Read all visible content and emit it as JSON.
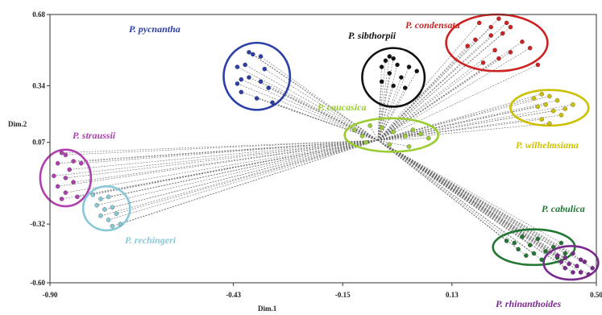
{
  "chart_data": {
    "type": "scatter",
    "title": "",
    "xlabel": "Dim.1",
    "ylabel": "Dim.2",
    "xlim": [
      -0.9,
      0.5
    ],
    "ylim": [
      -0.6,
      0.68
    ],
    "xticks": [
      -0.9,
      -0.43,
      -0.15,
      0.13,
      0.5
    ],
    "xtick_labels": [
      "-0.90",
      "-0.43",
      "-0.15",
      "0.13",
      "0.50"
    ],
    "yticks": [
      -0.6,
      -0.32,
      0.07,
      0.34,
      0.68
    ],
    "ytick_labels": [
      "-0.60",
      "-0.32",
      "0.07",
      "0.34",
      "0.68"
    ],
    "grid": false,
    "legend": "none",
    "hub": [
      -0.06,
      0.08
    ],
    "groups": [
      {
        "name": "P. pycnantha",
        "color": "#2b3fa7",
        "ellipse": {
          "cx": -0.37,
          "cy": 0.385,
          "rx": 0.085,
          "ry": 0.16
        },
        "points": [
          [
            -0.39,
            0.5
          ],
          [
            -0.38,
            0.49
          ],
          [
            -0.36,
            0.48
          ],
          [
            -0.4,
            0.44
          ],
          [
            -0.42,
            0.43
          ],
          [
            -0.35,
            0.42
          ],
          [
            -0.39,
            0.38
          ],
          [
            -0.41,
            0.37
          ],
          [
            -0.42,
            0.35
          ],
          [
            -0.36,
            0.36
          ],
          [
            -0.34,
            0.33
          ],
          [
            -0.41,
            0.31
          ],
          [
            -0.37,
            0.28
          ],
          [
            -0.33,
            0.26
          ]
        ]
      },
      {
        "name": "P. sibthorpii",
        "color": "#111111",
        "ellipse": {
          "cx": -0.02,
          "cy": 0.38,
          "rx": 0.08,
          "ry": 0.14
        },
        "points": [
          [
            -0.03,
            0.48
          ],
          [
            -0.02,
            0.47
          ],
          [
            -0.04,
            0.46
          ],
          [
            -0.01,
            0.44
          ],
          [
            -0.05,
            0.43
          ],
          [
            -0.03,
            0.4
          ],
          [
            0.0,
            0.38
          ],
          [
            -0.05,
            0.36
          ],
          [
            -0.02,
            0.34
          ],
          [
            0.02,
            0.43
          ],
          [
            0.04,
            0.41
          ],
          [
            0.01,
            0.33
          ]
        ]
      },
      {
        "name": "P. condensata",
        "color": "#cc2222",
        "ellipse": {
          "cx": 0.245,
          "cy": 0.545,
          "rx": 0.13,
          "ry": 0.135
        },
        "points": [
          [
            0.2,
            0.64
          ],
          [
            0.23,
            0.62
          ],
          [
            0.25,
            0.66
          ],
          [
            0.27,
            0.64
          ],
          [
            0.28,
            0.62
          ],
          [
            0.26,
            0.59
          ],
          [
            0.23,
            0.58
          ],
          [
            0.19,
            0.56
          ],
          [
            0.17,
            0.53
          ],
          [
            0.24,
            0.51
          ],
          [
            0.28,
            0.5
          ],
          [
            0.31,
            0.55
          ],
          [
            0.33,
            0.52
          ],
          [
            0.35,
            0.44
          ],
          [
            0.21,
            0.45
          ],
          [
            0.25,
            0.47
          ]
        ]
      },
      {
        "name": "P. caucasica",
        "color": "#9acd32",
        "ellipse": {
          "cx": -0.025,
          "cy": 0.105,
          "rx": 0.12,
          "ry": 0.08
        },
        "points": [
          [
            -0.12,
            0.13
          ],
          [
            -0.1,
            0.1
          ],
          [
            -0.08,
            0.15
          ],
          [
            -0.05,
            0.14
          ],
          [
            -0.02,
            0.12
          ],
          [
            0.01,
            0.1
          ],
          [
            0.03,
            0.13
          ],
          [
            0.05,
            0.11
          ],
          [
            0.07,
            0.09
          ],
          [
            -0.09,
            0.07
          ],
          [
            -0.03,
            0.06
          ],
          [
            0.02,
            0.05
          ]
        ]
      },
      {
        "name": "P. wilhelmsiana",
        "color": "#ccc000",
        "ellipse": {
          "cx": 0.38,
          "cy": 0.235,
          "rx": 0.1,
          "ry": 0.085
        },
        "points": [
          [
            0.34,
            0.28
          ],
          [
            0.36,
            0.3
          ],
          [
            0.38,
            0.29
          ],
          [
            0.4,
            0.27
          ],
          [
            0.37,
            0.25
          ],
          [
            0.35,
            0.24
          ],
          [
            0.39,
            0.22
          ],
          [
            0.42,
            0.23
          ],
          [
            0.44,
            0.25
          ],
          [
            0.41,
            0.2
          ],
          [
            0.36,
            0.18
          ],
          [
            0.38,
            0.16
          ]
        ]
      },
      {
        "name": "P. straussii",
        "color": "#b03fb0",
        "ellipse": {
          "cx": -0.86,
          "cy": -0.1,
          "rx": 0.065,
          "ry": 0.135
        },
        "points": [
          [
            -0.87,
            0.02
          ],
          [
            -0.86,
            0.01
          ],
          [
            -0.84,
            -0.02
          ],
          [
            -0.88,
            -0.03
          ],
          [
            -0.85,
            -0.06
          ],
          [
            -0.89,
            -0.09
          ],
          [
            -0.86,
            -0.1
          ],
          [
            -0.84,
            -0.12
          ],
          [
            -0.88,
            -0.14
          ],
          [
            -0.86,
            -0.17
          ],
          [
            -0.83,
            -0.19
          ],
          [
            -0.87,
            -0.2
          ],
          [
            -0.82,
            -0.03
          ]
        ]
      },
      {
        "name": "P. rechingeri",
        "color": "#88c8d8",
        "ellipse": {
          "cx": -0.755,
          "cy": -0.245,
          "rx": 0.06,
          "ry": 0.105
        },
        "points": [
          [
            -0.79,
            -0.18
          ],
          [
            -0.77,
            -0.2
          ],
          [
            -0.75,
            -0.19
          ],
          [
            -0.78,
            -0.23
          ],
          [
            -0.76,
            -0.25
          ],
          [
            -0.74,
            -0.24
          ],
          [
            -0.77,
            -0.28
          ],
          [
            -0.75,
            -0.3
          ],
          [
            -0.73,
            -0.27
          ],
          [
            -0.74,
            -0.33
          ],
          [
            -0.72,
            -0.32
          ]
        ]
      },
      {
        "name": "P. cabulica",
        "color": "#227733",
        "ellipse": {
          "cx": 0.34,
          "cy": -0.43,
          "rx": 0.105,
          "ry": 0.085
        },
        "points": [
          [
            0.27,
            -0.4
          ],
          [
            0.29,
            -0.41
          ],
          [
            0.31,
            -0.38
          ],
          [
            0.3,
            -0.44
          ],
          [
            0.33,
            -0.42
          ],
          [
            0.35,
            -0.39
          ],
          [
            0.34,
            -0.46
          ],
          [
            0.37,
            -0.45
          ],
          [
            0.39,
            -0.43
          ],
          [
            0.36,
            -0.49
          ],
          [
            0.4,
            -0.48
          ],
          [
            0.42,
            -0.46
          ],
          [
            0.32,
            -0.47
          ],
          [
            0.41,
            -0.41
          ]
        ]
      },
      {
        "name": "P. rhinanthoides",
        "color": "#7b2b8f",
        "ellipse": {
          "cx": 0.435,
          "cy": -0.505,
          "rx": 0.07,
          "ry": 0.08
        },
        "points": [
          [
            0.4,
            -0.47
          ],
          [
            0.42,
            -0.48
          ],
          [
            0.44,
            -0.46
          ],
          [
            0.46,
            -0.49
          ],
          [
            0.43,
            -0.51
          ],
          [
            0.45,
            -0.52
          ],
          [
            0.47,
            -0.5
          ],
          [
            0.49,
            -0.53
          ],
          [
            0.44,
            -0.55
          ],
          [
            0.42,
            -0.53
          ],
          [
            0.46,
            -0.55
          ],
          [
            0.48,
            -0.56
          ],
          [
            0.41,
            -0.5
          ]
        ]
      }
    ]
  }
}
